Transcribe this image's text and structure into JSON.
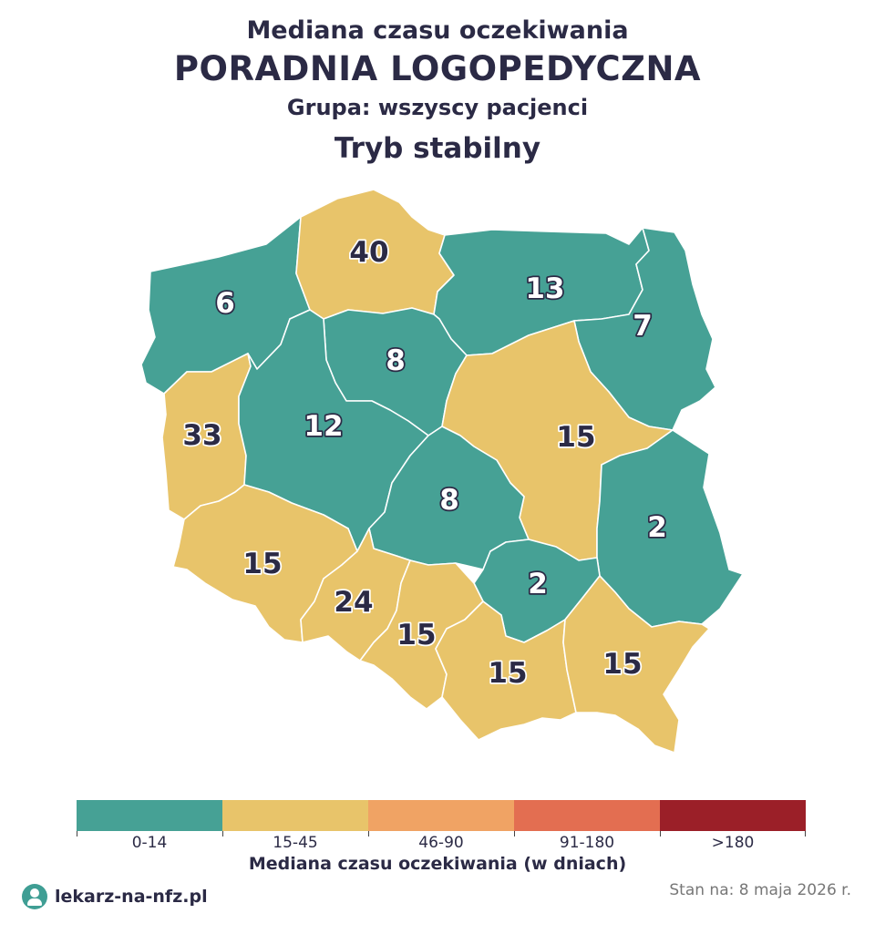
{
  "header": {
    "line1": "Mediana czasu oczekiwania",
    "line2": "PORADNIA LOGOPEDYCZNA",
    "line3": "Grupa: wszyscy pacjenci",
    "line4": "Tryb stabilny"
  },
  "colors": {
    "c0_14": "#46a195",
    "c15_45": "#e8c46a",
    "c46_90": "#f0a364",
    "c91_180": "#e36e51",
    "c180": "#9b1f28",
    "text": "#2b2a45"
  },
  "regions": [
    {
      "name": "zachodniopomorskie",
      "value": "6"
    },
    {
      "name": "pomorskie",
      "value": "40"
    },
    {
      "name": "warmińsko-mazurskie",
      "value": "13"
    },
    {
      "name": "podlaskie",
      "value": "7"
    },
    {
      "name": "kujawsko-pomorskie",
      "value": "8"
    },
    {
      "name": "lubuskie",
      "value": "33"
    },
    {
      "name": "wielkopolskie",
      "value": "12"
    },
    {
      "name": "mazowieckie",
      "value": "15"
    },
    {
      "name": "łódzkie",
      "value": "8"
    },
    {
      "name": "lubelskie",
      "value": "2"
    },
    {
      "name": "dolnośląskie",
      "value": "15"
    },
    {
      "name": "opolskie",
      "value": "24"
    },
    {
      "name": "świętokrzyskie",
      "value": "2"
    },
    {
      "name": "śląskie",
      "value": "15"
    },
    {
      "name": "małopolskie",
      "value": "15"
    },
    {
      "name": "podkarpackie",
      "value": "15"
    }
  ],
  "legend": {
    "labels": [
      "0-14",
      "15-45",
      "46-90",
      "91-180",
      ">180"
    ],
    "title": "Mediana czasu oczekiwania (w dniach)"
  },
  "footer": {
    "brand": "lekarz-na-nfz.pl",
    "date": "Stan na: 8 maja 2026 r."
  }
}
